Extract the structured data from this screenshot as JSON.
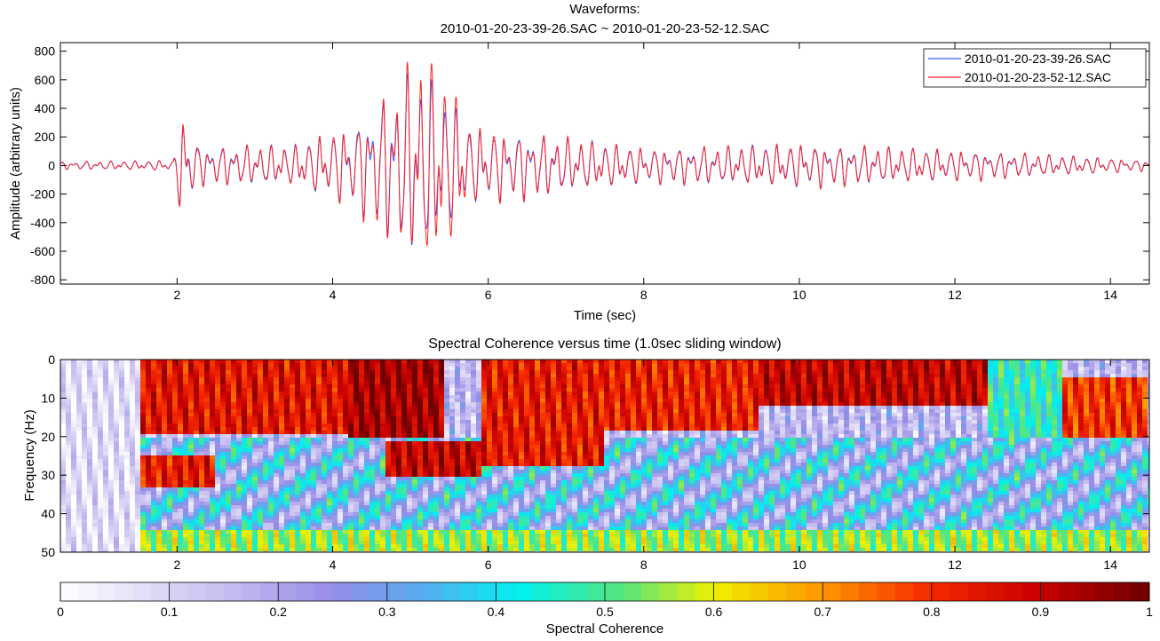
{
  "figure": {
    "waveform_title_line1": "Waveforms:",
    "waveform_title_line2": "2010-01-20-23-39-26.SAC ~ 2010-01-20-23-52-12.SAC",
    "coherence_title": "Spectral Coherence versus time (1.0sec sliding window)",
    "colorbar_label": "Spectral Coherence"
  },
  "chart_data": [
    {
      "type": "line",
      "title": "Waveforms: 2010-01-20-23-39-26.SAC ~ 2010-01-20-23-52-12.SAC",
      "xlabel": "Time (sec)",
      "ylabel": "Amplitude (arbitrary units)",
      "xlim": [
        0.5,
        14.5
      ],
      "ylim": [
        -830,
        860
      ],
      "xticks": [
        2,
        4,
        6,
        8,
        10,
        12,
        14
      ],
      "yticks": [
        -800,
        -600,
        -400,
        -200,
        0,
        200,
        400,
        600,
        800
      ],
      "legend_position": "top-right",
      "series": [
        {
          "name": "2010-01-20-23-39-26.SAC",
          "color": "#3355ff",
          "envelope": [
            [
              0.5,
              30
            ],
            [
              1.95,
              40
            ],
            [
              2.05,
              390
            ],
            [
              2.3,
              150
            ],
            [
              3.5,
              160
            ],
            [
              4.3,
              330
            ],
            [
              4.9,
              700
            ],
            [
              5.05,
              780
            ],
            [
              5.35,
              620
            ],
            [
              5.8,
              300
            ],
            [
              6.5,
              250
            ],
            [
              8,
              140
            ],
            [
              9,
              150
            ],
            [
              10,
              170
            ],
            [
              12,
              120
            ],
            [
              13.5,
              75
            ],
            [
              14.5,
              40
            ]
          ]
        },
        {
          "name": "2010-01-20-23-52-12.SAC",
          "color": "#ff2222",
          "envelope": [
            [
              0.5,
              30
            ],
            [
              1.95,
              40
            ],
            [
              2.05,
              400
            ],
            [
              2.3,
              150
            ],
            [
              3.5,
              160
            ],
            [
              4.3,
              340
            ],
            [
              4.9,
              720
            ],
            [
              5.05,
              850
            ],
            [
              5.35,
              830
            ],
            [
              5.8,
              310
            ],
            [
              6.5,
              260
            ],
            [
              8,
              140
            ],
            [
              9,
              150
            ],
            [
              10,
              175
            ],
            [
              12,
              125
            ],
            [
              13.5,
              75
            ],
            [
              14.5,
              40
            ]
          ]
        }
      ]
    },
    {
      "type": "heatmap",
      "title": "Spectral Coherence versus time (1.0sec sliding window)",
      "xlabel": "",
      "ylabel": "Frequency (Hz)",
      "xlim": [
        0.5,
        14.5
      ],
      "ylim": [
        0,
        50
      ],
      "y_reversed": true,
      "xticks": [
        2,
        4,
        6,
        8,
        10,
        12,
        14
      ],
      "yticks": [
        0,
        10,
        20,
        30,
        40,
        50
      ],
      "colorbar": {
        "label": "Spectral Coherence",
        "range": [
          0,
          1
        ],
        "ticks": [
          0,
          0.1,
          0.2,
          0.3,
          0.4,
          0.5,
          0.6,
          0.7,
          0.8,
          0.9,
          1
        ]
      },
      "regions": [
        {
          "t_start": 0.5,
          "t_end": 1.55,
          "f_top": 0,
          "f_bottom": 50,
          "coherence": 0.08
        },
        {
          "t_start": 1.55,
          "t_end": 4.2,
          "f_top": 0,
          "f_bottom": 19,
          "coherence": 0.85
        },
        {
          "t_start": 1.55,
          "t_end": 2.5,
          "f_top": 25,
          "f_bottom": 33,
          "coherence": 0.84
        },
        {
          "t_start": 4.2,
          "t_end": 5.4,
          "f_top": 0,
          "f_bottom": 20,
          "coherence": 0.94
        },
        {
          "t_start": 4.7,
          "t_end": 5.9,
          "f_top": 21,
          "f_bottom": 30,
          "coherence": 0.9
        },
        {
          "t_start": 5.9,
          "t_end": 7.5,
          "f_top": 0,
          "f_bottom": 28,
          "coherence": 0.84
        },
        {
          "t_start": 7.5,
          "t_end": 9.5,
          "f_top": 0,
          "f_bottom": 18,
          "coherence": 0.83
        },
        {
          "t_start": 9.5,
          "t_end": 12.4,
          "f_top": 0,
          "f_bottom": 12,
          "coherence": 0.9
        },
        {
          "t_start": 12.4,
          "t_end": 13.4,
          "f_top": 0,
          "f_bottom": 20,
          "coherence": 0.45
        },
        {
          "t_start": 13.4,
          "t_end": 14.5,
          "f_top": 5,
          "f_bottom": 20,
          "coherence": 0.8
        },
        {
          "t_start": 1.55,
          "t_end": 14.5,
          "f_top": 44,
          "f_bottom": 50,
          "coherence": 0.55
        }
      ]
    }
  ]
}
